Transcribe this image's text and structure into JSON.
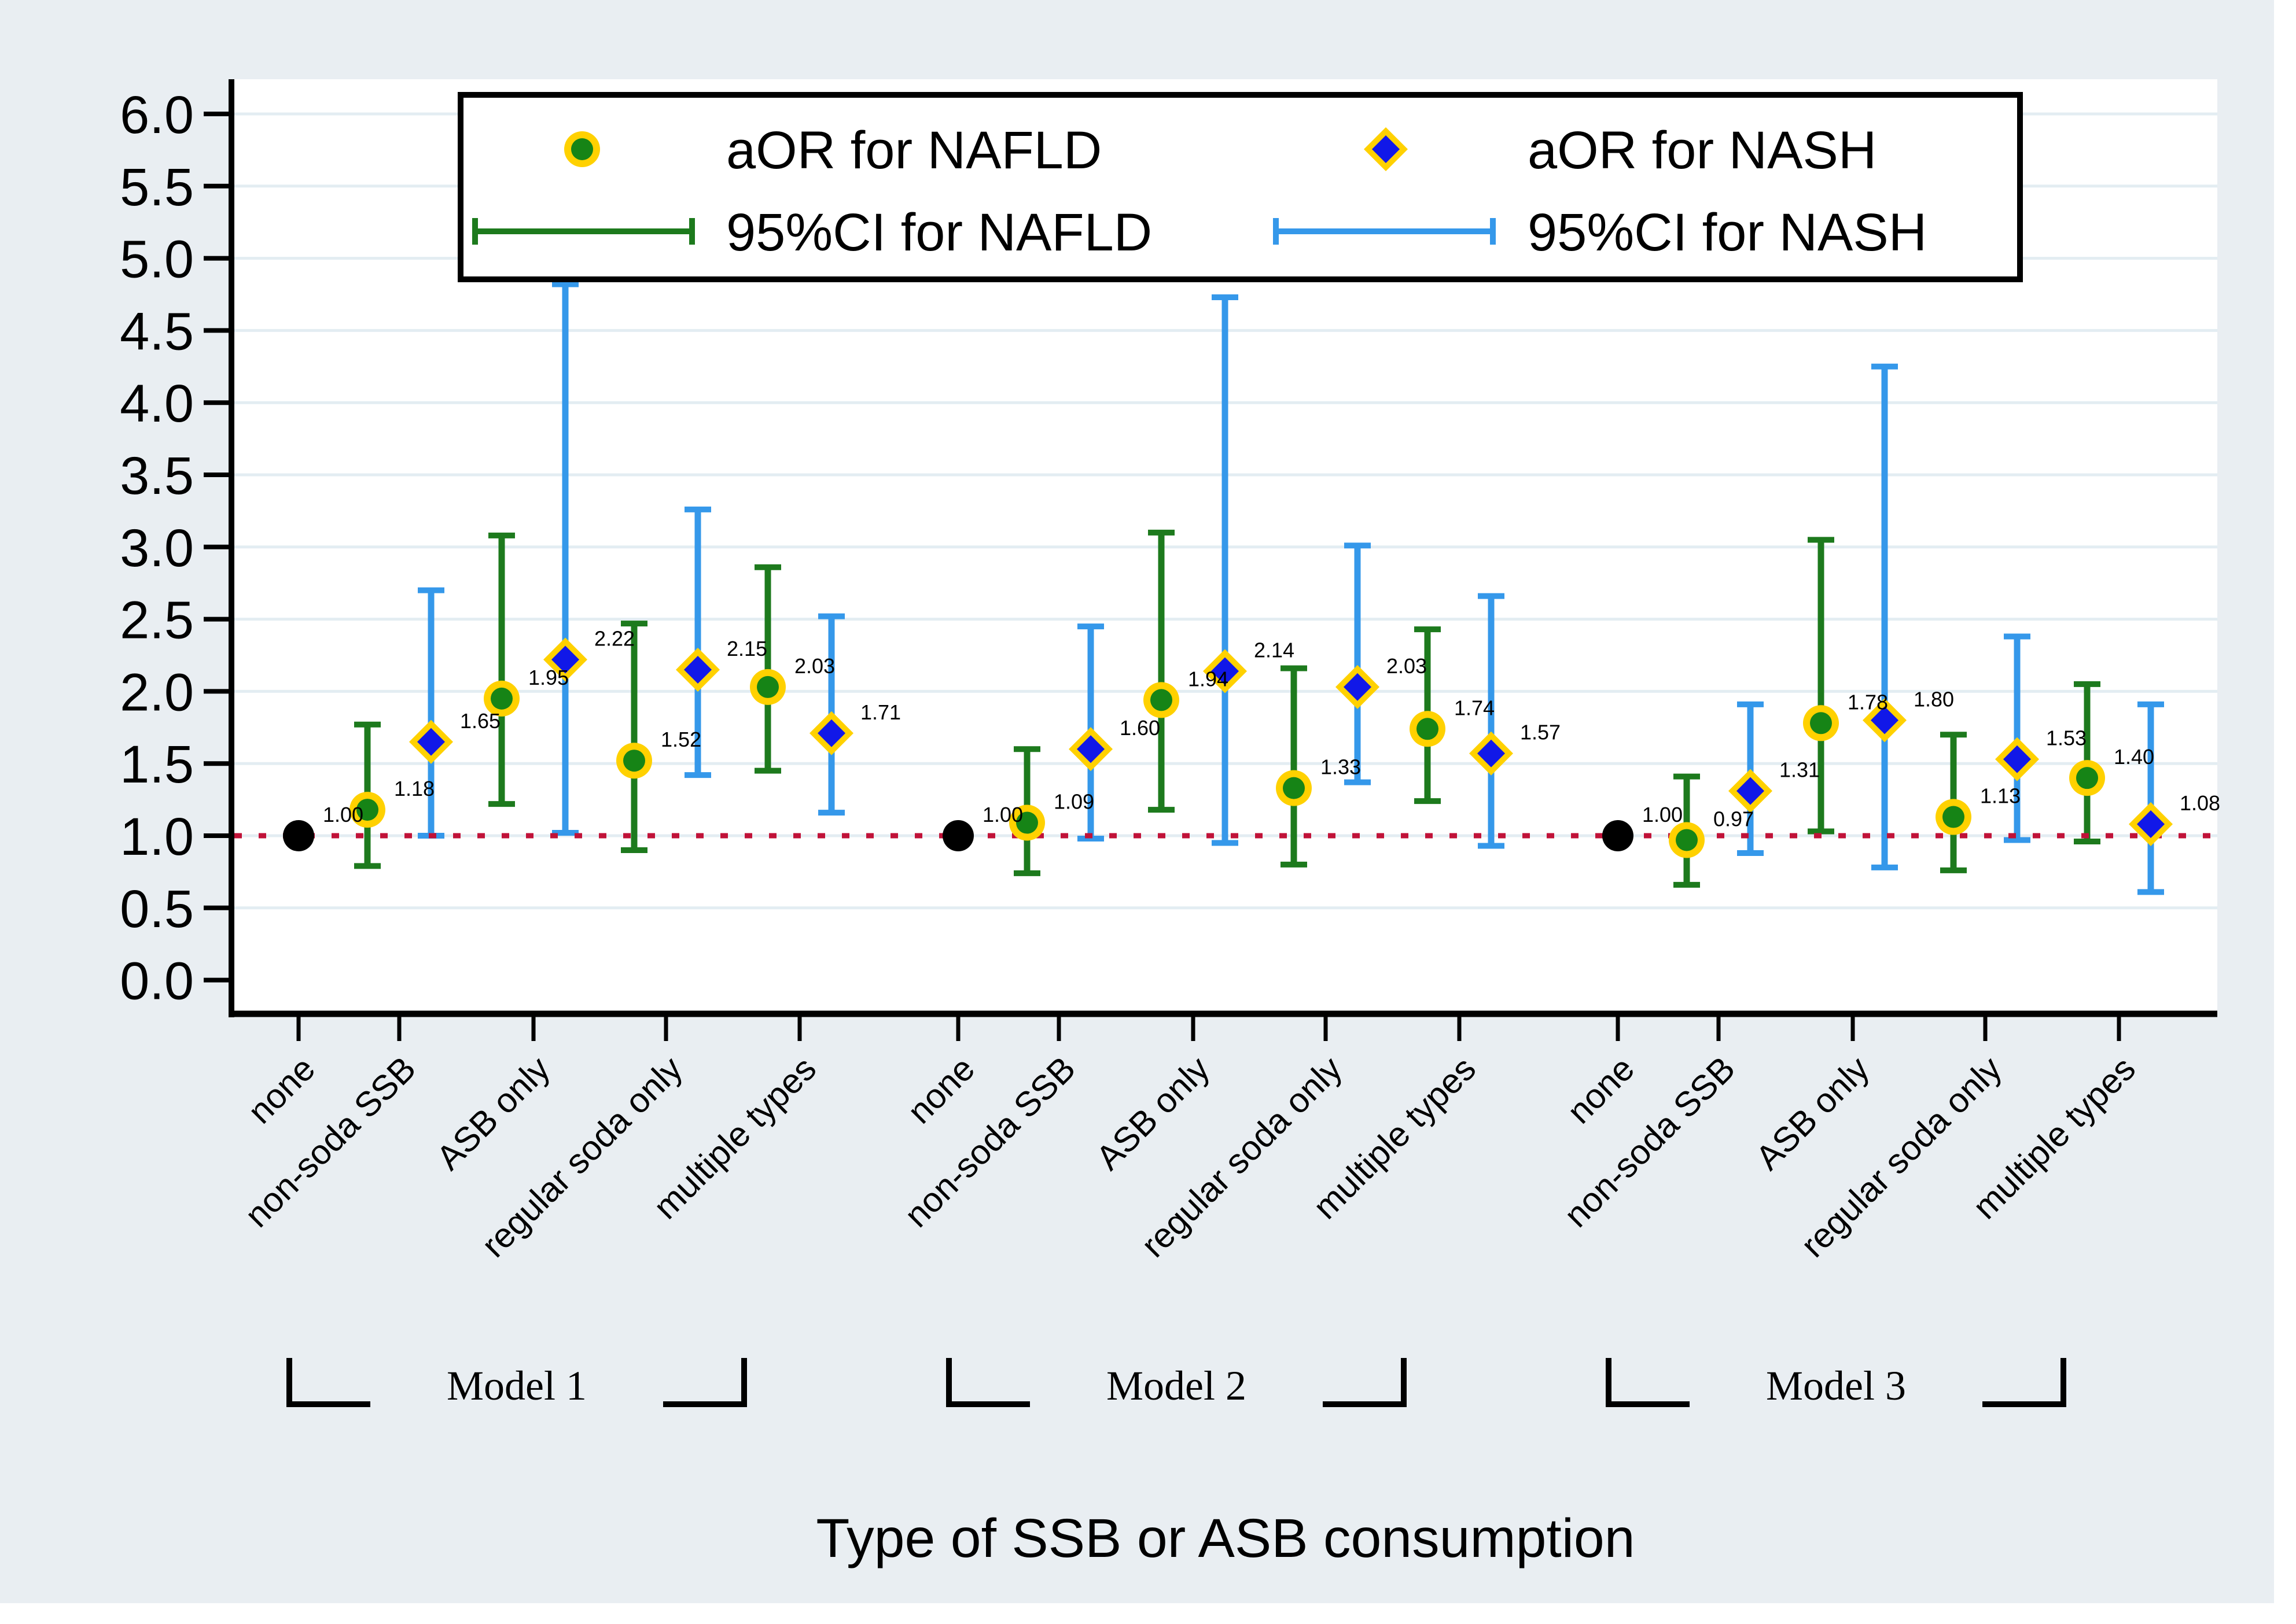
{
  "colors": {
    "canvas_background": "#e9eef2",
    "plot_background": "#ffffff",
    "gridline": "#e3edf2",
    "axis": "#000000",
    "reference_line": "#c01238",
    "nafld_ci": "#1d7a1d",
    "nafld_marker": "#168416",
    "nash_ci": "#3598ea",
    "nash_marker": "#1118e8",
    "marker_ring": "#ffd100",
    "reference_marker": "#000000"
  },
  "legend": {
    "items": [
      {
        "label": "aOR for NAFLD",
        "marker": "circle-icon"
      },
      {
        "label": "aOR for NASH",
        "marker": "diamond-icon"
      },
      {
        "label": "95%CI for NAFLD",
        "marker": "error-bar-icon"
      },
      {
        "label": "95%CI for NASH",
        "marker": "error-bar-icon"
      }
    ]
  },
  "x_axis": {
    "title": "Type of SSB or ASB consumption",
    "categories": [
      "none",
      "non-soda SSB",
      "ASB only",
      "regular soda only",
      "multiple types"
    ]
  },
  "y_axis": {
    "tick_labels": [
      "0.0",
      "0.5",
      "1.0",
      "1.5",
      "2.0",
      "2.5",
      "3.0",
      "3.5",
      "4.0",
      "4.5",
      "5.0",
      "5.5",
      "6.0"
    ]
  },
  "models": [
    {
      "label": "Model 1"
    },
    {
      "label": "Model 2"
    },
    {
      "label": "Model 3"
    }
  ],
  "chart_data": {
    "type": "scatter",
    "title": "",
    "xlabel": "Type of SSB or ASB consumption",
    "ylabel": "",
    "ylim": [
      0,
      6.25
    ],
    "ytick_step": 0.5,
    "grid": true,
    "legend_position": "top",
    "reference_line_y": 1.0,
    "series_legend": [
      "aOR for NAFLD",
      "aOR for NASH",
      "95%CI for NAFLD",
      "95%CI for NASH"
    ],
    "groups": [
      {
        "model": "Model 1",
        "points": [
          {
            "category": "none",
            "is_reference": true,
            "aOR": 1.0
          },
          {
            "category": "non-soda SSB",
            "NAFLD": {
              "aOR": 1.18,
              "ci95": [
                0.79,
                1.77
              ]
            },
            "NASH": {
              "aOR": 1.65,
              "ci95": [
                1.0,
                2.7
              ]
            }
          },
          {
            "category": "ASB only",
            "NAFLD": {
              "aOR": 1.95,
              "ci95": [
                1.22,
                3.08
              ]
            },
            "NASH": {
              "aOR": 2.22,
              "ci95": [
                1.02,
                4.82
              ]
            }
          },
          {
            "category": "regular soda only",
            "NAFLD": {
              "aOR": 1.52,
              "ci95": [
                0.9,
                2.47
              ]
            },
            "NASH": {
              "aOR": 2.15,
              "ci95": [
                1.42,
                3.26
              ]
            }
          },
          {
            "category": "multiple types",
            "NAFLD": {
              "aOR": 2.03,
              "ci95": [
                1.45,
                2.86
              ]
            },
            "NASH": {
              "aOR": 1.71,
              "ci95": [
                1.16,
                2.52
              ]
            }
          }
        ]
      },
      {
        "model": "Model 2",
        "points": [
          {
            "category": "none",
            "is_reference": true,
            "aOR": 1.0
          },
          {
            "category": "non-soda SSB",
            "NAFLD": {
              "aOR": 1.09,
              "ci95": [
                0.74,
                1.6
              ]
            },
            "NASH": {
              "aOR": 1.6,
              "ci95": [
                0.98,
                2.45
              ]
            }
          },
          {
            "category": "ASB only",
            "NAFLD": {
              "aOR": 1.94,
              "ci95": [
                1.18,
                3.1
              ]
            },
            "NASH": {
              "aOR": 2.14,
              "ci95": [
                0.95,
                4.73
              ]
            }
          },
          {
            "category": "regular soda only",
            "NAFLD": {
              "aOR": 1.33,
              "ci95": [
                0.8,
                2.16
              ]
            },
            "NASH": {
              "aOR": 2.03,
              "ci95": [
                1.37,
                3.01
              ]
            }
          },
          {
            "category": "multiple types",
            "NAFLD": {
              "aOR": 1.74,
              "ci95": [
                1.24,
                2.43
              ]
            },
            "NASH": {
              "aOR": 1.57,
              "ci95": [
                0.93,
                2.66
              ]
            }
          }
        ]
      },
      {
        "model": "Model 3",
        "points": [
          {
            "category": "none",
            "is_reference": true,
            "aOR": 1.0
          },
          {
            "category": "non-soda SSB",
            "NAFLD": {
              "aOR": 0.97,
              "ci95": [
                0.66,
                1.41
              ]
            },
            "NASH": {
              "aOR": 1.31,
              "ci95": [
                0.88,
                1.91
              ]
            }
          },
          {
            "category": "ASB only",
            "NAFLD": {
              "aOR": 1.78,
              "ci95": [
                1.03,
                3.05
              ]
            },
            "NASH": {
              "aOR": 1.8,
              "ci95": [
                0.78,
                4.25
              ]
            }
          },
          {
            "category": "regular soda only",
            "NAFLD": {
              "aOR": 1.13,
              "ci95": [
                0.76,
                1.7
              ]
            },
            "NASH": {
              "aOR": 1.53,
              "ci95": [
                0.97,
                2.38
              ]
            }
          },
          {
            "category": "multiple types",
            "NAFLD": {
              "aOR": 1.4,
              "ci95": [
                0.96,
                2.05
              ]
            },
            "NASH": {
              "aOR": 1.08,
              "ci95": [
                0.61,
                1.91
              ]
            }
          }
        ]
      }
    ]
  }
}
